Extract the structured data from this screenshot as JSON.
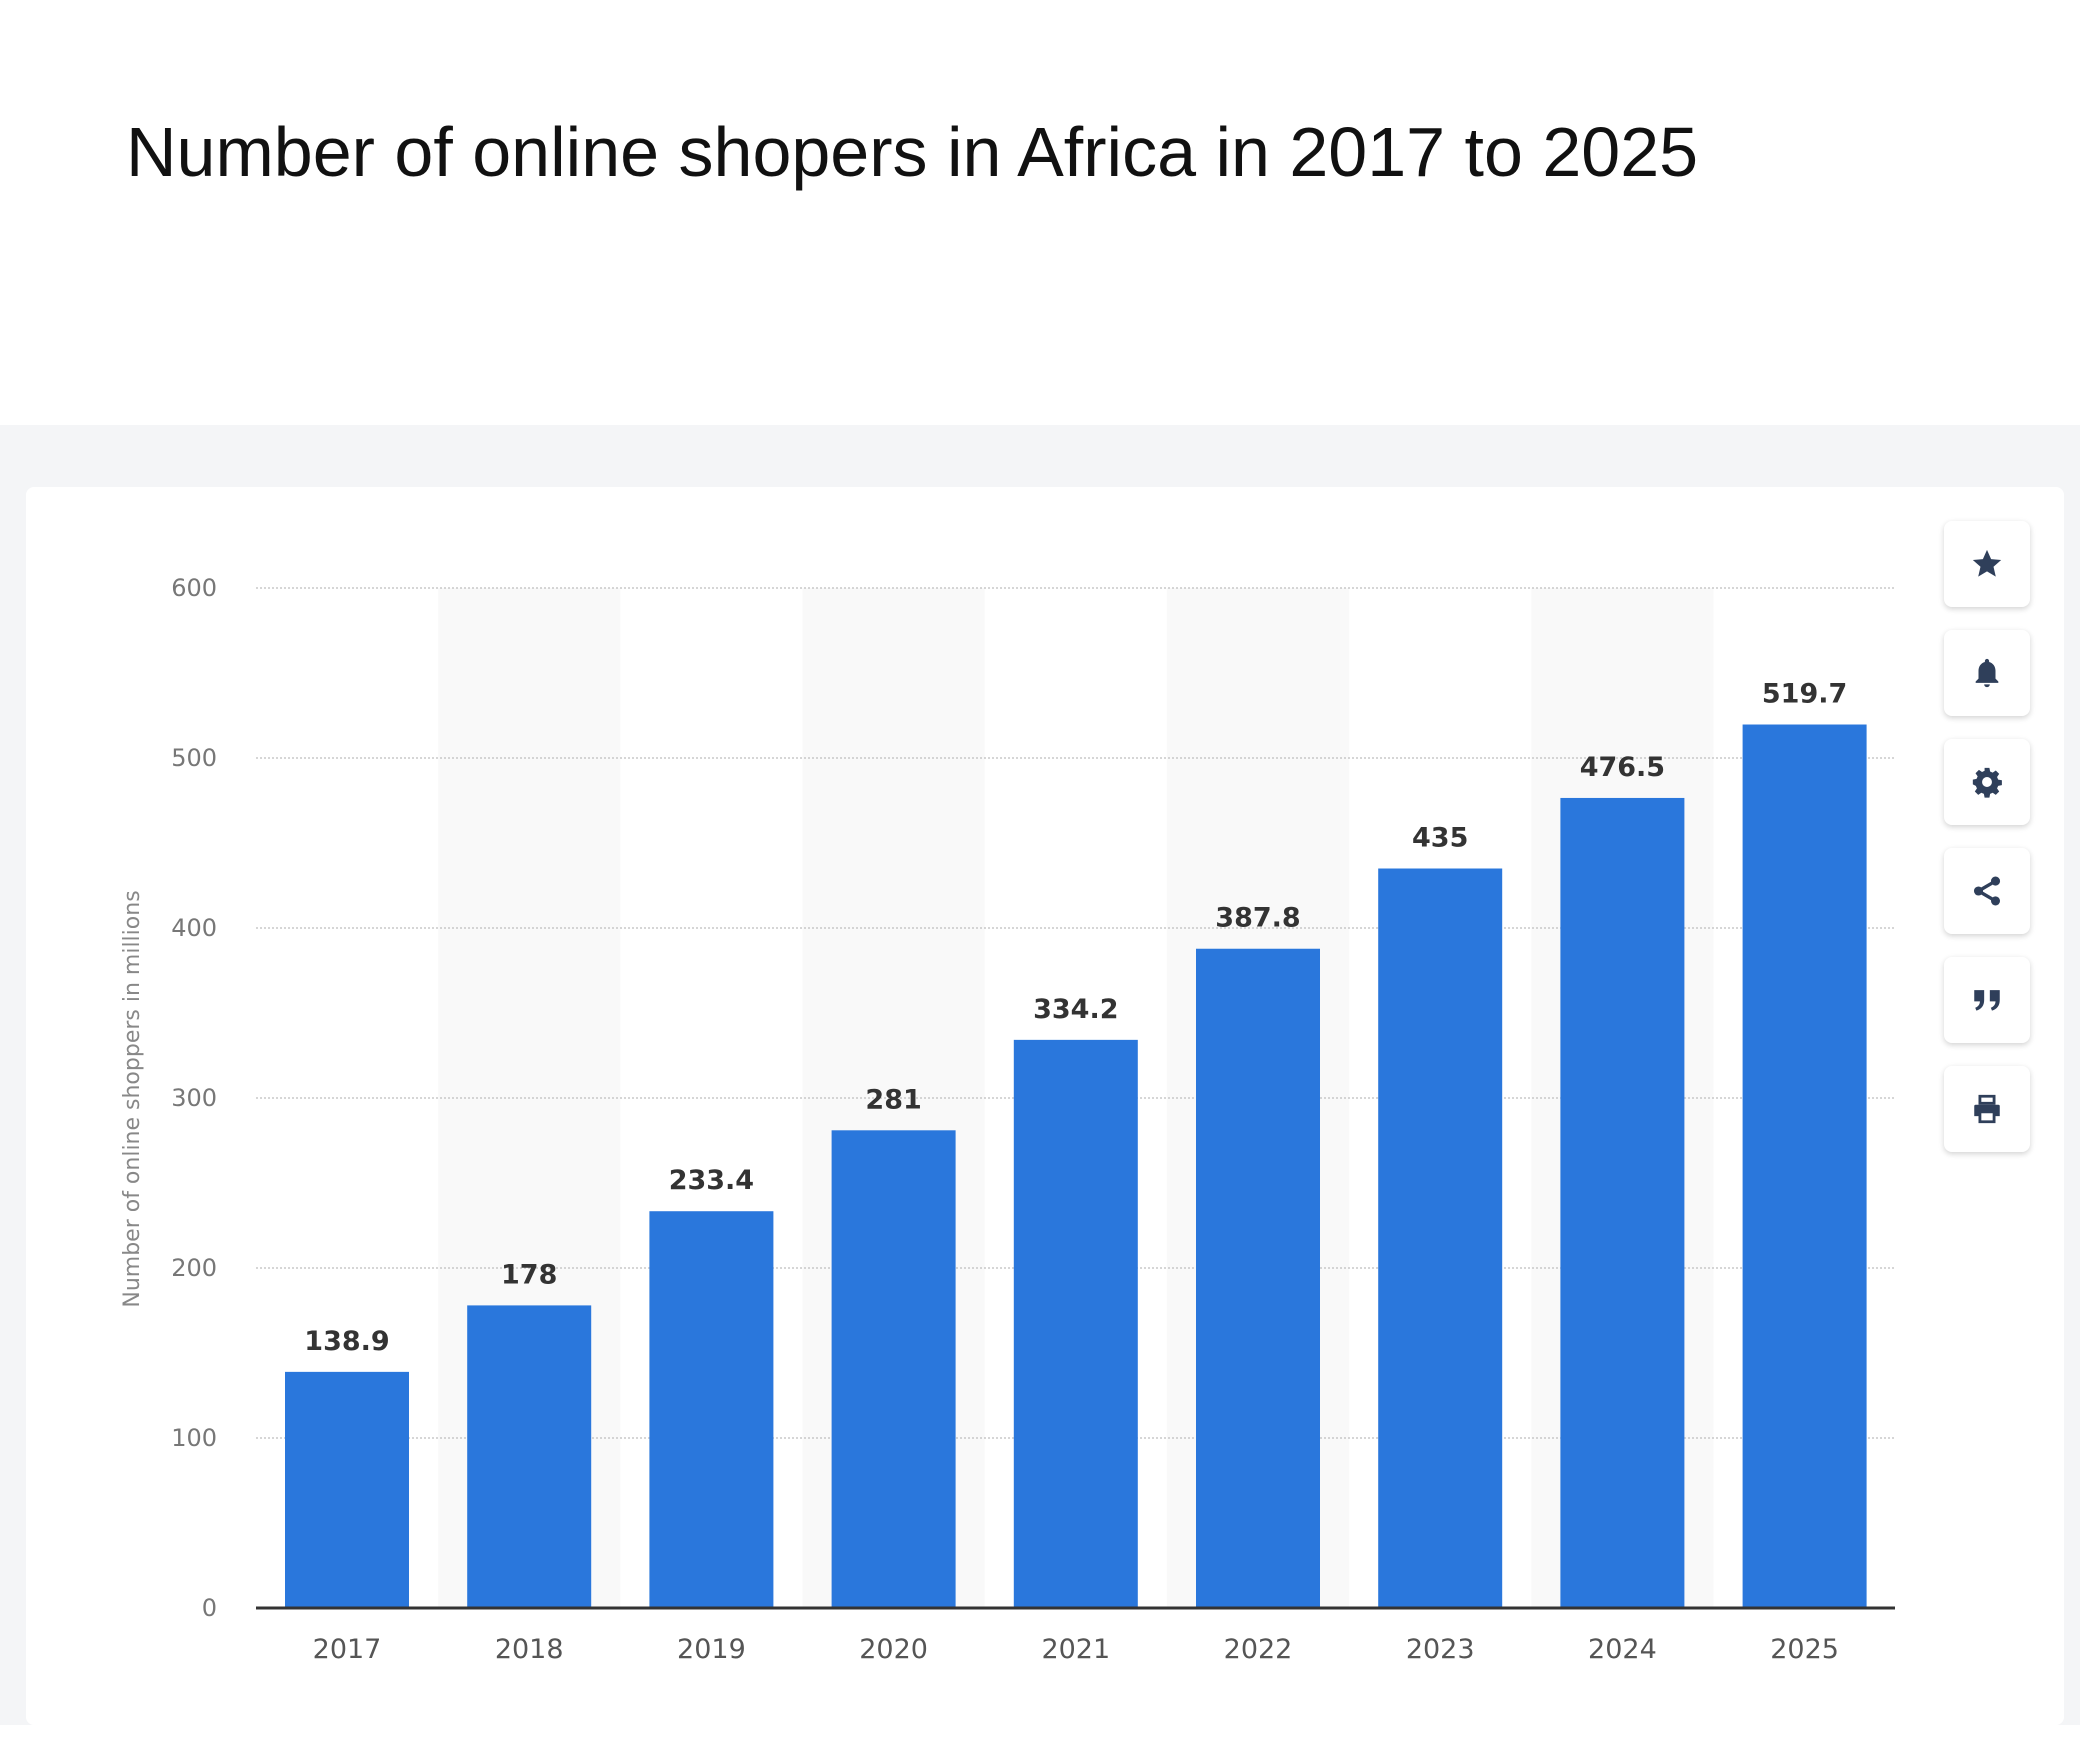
{
  "page": {
    "title": "Number of online shopers in Africa in 2017 to 2025"
  },
  "toolbar": {
    "buttons": [
      {
        "name": "favorite-button",
        "icon": "star-icon"
      },
      {
        "name": "notify-button",
        "icon": "bell-icon"
      },
      {
        "name": "settings-button",
        "icon": "gear-icon"
      },
      {
        "name": "share-button",
        "icon": "share-icon"
      },
      {
        "name": "cite-button",
        "icon": "quote-icon"
      },
      {
        "name": "print-button",
        "icon": "printer-icon"
      }
    ]
  },
  "chart_data": {
    "type": "bar",
    "title": "",
    "xlabel": "",
    "ylabel": "Number of online shoppers in millions",
    "categories": [
      "2017",
      "2018",
      "2019",
      "2020",
      "2021",
      "2022",
      "2023",
      "2024",
      "2025"
    ],
    "values": [
      138.9,
      178,
      233.4,
      281,
      334.2,
      387.8,
      435,
      476.5,
      519.7
    ],
    "value_labels": [
      "138.9",
      "178",
      "233.4",
      "281",
      "334.2",
      "387.8",
      "435",
      "476.5",
      "519.7"
    ],
    "yticks": [
      "0",
      "100",
      "200",
      "300",
      "400",
      "500",
      "600"
    ],
    "ylim": [
      0,
      600
    ],
    "grid": true,
    "bar_color": "#2a77dc",
    "alt_band_color": "#f9f9f9"
  }
}
